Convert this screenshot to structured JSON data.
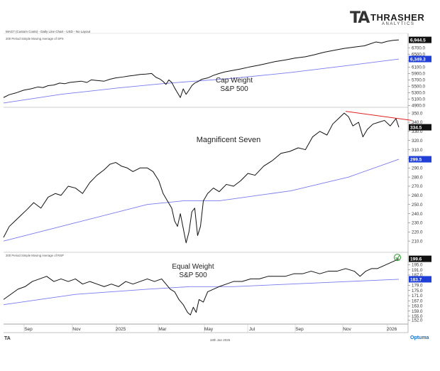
{
  "brand": {
    "mark": "TA",
    "name": "THRASHER",
    "sub": "ANALYTICS"
  },
  "header_text": "MAG7 (Custom Costs) - Daily Line Chart - USD - No Layout",
  "footer": {
    "date": "18th Jan 2026",
    "left_mark": "TA",
    "right_mark": "Optuma"
  },
  "x_axis": {
    "labels": [
      "Sep",
      "Nov",
      "2025",
      "Mar",
      "May",
      "Jul",
      "Sep",
      "Nov",
      "2026"
    ]
  },
  "colors": {
    "price": "#111111",
    "moving_average": "#7a7aee",
    "resistance": "#e02020",
    "ma_label_bg": "#1f3fd6",
    "price_label_bg": "#111111",
    "check": "#2c9a2c"
  },
  "chart_data": [
    {
      "type": "line",
      "name": "cap-weight",
      "annotation": "Cap Weight\nS&P 500",
      "ma_label": "200 Period Simple Moving Average of SPX",
      "y_ticks": [
        6700.0,
        6500.0,
        6300.0,
        6100.0,
        5900.0,
        5700.0,
        5500.0,
        5300.0,
        5100.0,
        4900.0
      ],
      "ylim": [
        4890,
        7080
      ],
      "last_price": "6,944.5",
      "last_ma": "6,349.3",
      "x": [
        0,
        8,
        18,
        28,
        38,
        48,
        55,
        62,
        70,
        78,
        85,
        92,
        100,
        108,
        116,
        122,
        130,
        140,
        148,
        156,
        166,
        174,
        182,
        190,
        198,
        206,
        212,
        218,
        222,
        226,
        230,
        234,
        238,
        242,
        246,
        250,
        254,
        258,
        262,
        266,
        270,
        276,
        284,
        292,
        300,
        308,
        318,
        330,
        342,
        354,
        366,
        378,
        392,
        406,
        420,
        432,
        446,
        460,
        474,
        488,
        502,
        510,
        518,
        526,
        534,
        542,
        550
      ],
      "values": [
        5150,
        5240,
        5300,
        5380,
        5420,
        5480,
        5460,
        5520,
        5540,
        5600,
        5580,
        5620,
        5640,
        5660,
        5620,
        5700,
        5680,
        5660,
        5720,
        5760,
        5790,
        5820,
        5840,
        5870,
        5880,
        5900,
        5780,
        5720,
        5650,
        5560,
        5700,
        5620,
        5450,
        5300,
        5150,
        5420,
        5250,
        5380,
        5520,
        5600,
        5640,
        5720,
        5760,
        5840,
        5900,
        5950,
        5990,
        6040,
        6100,
        6150,
        6210,
        6270,
        6320,
        6380,
        6420,
        6480,
        6560,
        6620,
        6680,
        6720,
        6760,
        6820,
        6880,
        6850,
        6900,
        6930,
        6944.5
      ],
      "ma_x": [
        0,
        80,
        160,
        220,
        260,
        320,
        400,
        480,
        550
      ],
      "ma_values": [
        4980,
        5250,
        5450,
        5580,
        5650,
        5750,
        5930,
        6150,
        6349.3
      ]
    },
    {
      "type": "line",
      "name": "magnificent-seven",
      "annotation": "Magnificent Seven",
      "y_ticks": [
        350.0,
        340.0,
        330.0,
        320.0,
        310.0,
        300.0,
        290.0,
        280.0,
        270.0,
        260.0,
        250.0,
        240.0,
        230.0,
        220.0,
        210.0
      ],
      "ylim": [
        200,
        354
      ],
      "last_price": "334.5",
      "last_ma": "299.5",
      "x": [
        0,
        8,
        16,
        24,
        32,
        42,
        52,
        62,
        72,
        80,
        90,
        100,
        110,
        120,
        130,
        140,
        148,
        156,
        164,
        172,
        180,
        190,
        200,
        208,
        216,
        222,
        228,
        234,
        238,
        242,
        246,
        250,
        254,
        258,
        262,
        266,
        270,
        274,
        278,
        284,
        292,
        300,
        310,
        320,
        330,
        340,
        350,
        362,
        374,
        386,
        398,
        410,
        420,
        430,
        440,
        450,
        458,
        466,
        474,
        480,
        486,
        494,
        500,
        506,
        514,
        522,
        530,
        538,
        546,
        550
      ],
      "values": [
        214,
        226,
        232,
        238,
        244,
        252,
        246,
        258,
        262,
        260,
        270,
        268,
        262,
        274,
        282,
        288,
        294,
        296,
        292,
        290,
        286,
        290,
        290,
        286,
        276,
        262,
        254,
        246,
        232,
        226,
        240,
        224,
        208,
        220,
        242,
        246,
        216,
        226,
        254,
        262,
        268,
        264,
        272,
        270,
        276,
        284,
        282,
        292,
        298,
        306,
        308,
        312,
        310,
        324,
        330,
        326,
        338,
        344,
        350,
        346,
        336,
        340,
        324,
        332,
        338,
        340,
        342,
        336,
        344,
        334.5
      ],
      "ma_x": [
        0,
        100,
        200,
        250,
        300,
        400,
        480,
        550
      ],
      "ma_values": [
        210,
        230,
        250,
        254,
        254,
        265,
        280,
        299.5
      ],
      "resistance": {
        "x": [
          476,
          568
        ],
        "values": [
          352,
          342
        ]
      }
    },
    {
      "type": "line",
      "name": "equal-weight",
      "annotation": "Equal Weight\nS&P 500",
      "ma_label": "200 Period Simple Moving Average of RSP",
      "y_ticks": [
        195.0,
        191.0,
        187.0,
        179.0,
        175.0,
        171.0,
        167.0,
        163.0,
        159.0,
        155.0,
        152.0
      ],
      "ylim": [
        150,
        203
      ],
      "last_price": "199.6",
      "last_ma": "183.7",
      "x": [
        0,
        10,
        20,
        30,
        40,
        50,
        60,
        70,
        80,
        90,
        100,
        110,
        120,
        130,
        140,
        150,
        160,
        170,
        180,
        190,
        200,
        210,
        220,
        226,
        232,
        238,
        244,
        250,
        256,
        260,
        264,
        268,
        272,
        278,
        284,
        292,
        300,
        310,
        320,
        332,
        344,
        356,
        368,
        380,
        392,
        404,
        416,
        428,
        440,
        452,
        464,
        476,
        488,
        496,
        504,
        512,
        520,
        528,
        536,
        544,
        550
      ],
      "values": [
        168,
        172,
        176,
        178,
        182,
        184,
        186,
        182,
        184,
        182,
        184,
        180,
        182,
        180,
        178,
        180,
        178,
        182,
        180,
        182,
        184,
        182,
        184,
        180,
        176,
        174,
        168,
        164,
        158,
        156,
        162,
        158,
        168,
        166,
        174,
        176,
        178,
        180,
        182,
        182,
        184,
        184,
        186,
        186,
        186,
        188,
        188,
        190,
        188,
        190,
        190,
        192,
        190,
        186,
        190,
        192,
        192,
        194,
        196,
        198,
        199.6
      ],
      "ma_x": [
        0,
        100,
        200,
        260,
        320,
        400,
        480,
        550
      ],
      "ma_values": [
        164,
        172,
        176,
        178,
        178,
        180,
        182,
        183.7
      ]
    }
  ]
}
